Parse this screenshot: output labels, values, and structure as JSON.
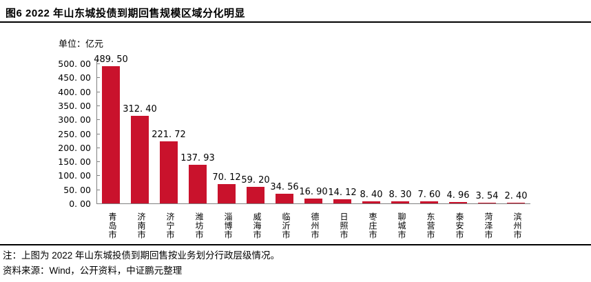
{
  "header": {
    "title": "图6  2022 年山东城投债到期回售规模区域分化明显"
  },
  "chart_data": {
    "type": "bar",
    "title": "2022 年山东城投债到期回售规模区域分化明显",
    "unit_label": "单位：亿元",
    "categories": [
      "青岛市",
      "济南市",
      "济宁市",
      "潍坊市",
      "淄博市",
      "威海市",
      "临沂市",
      "德州市",
      "日照市",
      "枣庄市",
      "聊城市",
      "东营市",
      "泰安市",
      "菏泽市",
      "滨州市"
    ],
    "values": [
      489.5,
      312.4,
      221.72,
      137.93,
      70.12,
      59.2,
      34.56,
      16.9,
      14.12,
      8.4,
      8.3,
      7.6,
      4.96,
      3.54,
      2.4
    ],
    "value_labels": [
      "489. 50",
      "312. 40",
      "221. 72",
      "137. 93",
      "70. 12",
      "59. 20",
      "34. 56",
      "16. 90",
      "14. 12",
      "8. 40",
      "8. 30",
      "7. 60",
      "4. 96",
      "3. 54",
      "2. 40"
    ],
    "ylim": [
      0,
      500
    ],
    "ytick_step": 50,
    "ytick_labels": [
      "0. 00",
      "50. 00",
      "100. 00",
      "150. 00",
      "200. 00",
      "250. 00",
      "300. 00",
      "350. 00",
      "400. 00",
      "450. 00",
      "500. 00"
    ],
    "xlabel": "",
    "ylabel": "",
    "grid": false,
    "legend": "none",
    "bar_color": "#C9122C",
    "axis_color": "#808080",
    "label_color": "#000000"
  },
  "footer": {
    "note": "注：上图为 2022 年山东城投债到期回售按业务划分行政层级情况。",
    "source": "资料来源：Wind，公开资料，中证鹏元整理"
  }
}
